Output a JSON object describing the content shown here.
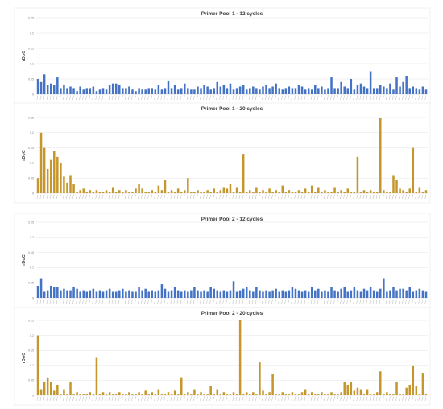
{
  "colors": {
    "blue": "#4472c4",
    "orange": "#c5962b",
    "grid": "#e4e4e4",
    "axis": "#c8c8c8"
  },
  "chart_data": [
    {
      "type": "bar",
      "title": "Primer Pool 1 - 12 cycles",
      "ylabel": "rDoC",
      "ylim": [
        0,
        0.25
      ],
      "yticks": [
        "0",
        "0.05",
        "0.1",
        "0.15",
        "0.2",
        "0.25"
      ],
      "grid": true,
      "color": "#4472c4",
      "values": [
        0.05,
        0.04,
        0.065,
        0.03,
        0.035,
        0.03,
        0.055,
        0.02,
        0.03,
        0.02,
        0.025,
        0.02,
        0.01,
        0.025,
        0.015,
        0.02,
        0.02,
        0.025,
        0.01,
        0.015,
        0.02,
        0.015,
        0.03,
        0.035,
        0.035,
        0.03,
        0.02,
        0.02,
        0.025,
        0.015,
        0.01,
        0.02,
        0.015,
        0.015,
        0.02,
        0.02,
        0.015,
        0.03,
        0.015,
        0.02,
        0.045,
        0.02,
        0.03,
        0.015,
        0.02,
        0.035,
        0.02,
        0.015,
        0.015,
        0.025,
        0.02,
        0.03,
        0.025,
        0.015,
        0.02,
        0.04,
        0.025,
        0.03,
        0.02,
        0.035,
        0.015,
        0.02,
        0.025,
        0.03,
        0.015,
        0.02,
        0.025,
        0.02,
        0.015,
        0.025,
        0.03,
        0.02,
        0.025,
        0.035,
        0.02,
        0.015,
        0.02,
        0.025,
        0.02,
        0.02,
        0.03,
        0.025,
        0.015,
        0.02,
        0.015,
        0.03,
        0.02,
        0.025,
        0.015,
        0.02,
        0.055,
        0.02,
        0.02,
        0.04,
        0.025,
        0.02,
        0.05,
        0.015,
        0.03,
        0.035,
        0.025,
        0.02,
        0.075,
        0.02,
        0.02,
        0.03,
        0.025,
        0.02,
        0.035,
        0.015,
        0.055,
        0.025,
        0.04,
        0.06,
        0.02,
        0.025,
        0.02,
        0.015,
        0.025,
        0.015
      ]
    },
    {
      "type": "bar",
      "title": "Primer Pool 1 - 20 cycles",
      "ylabel": "rDoC",
      "ylim": [
        0,
        0.25
      ],
      "yticks": [
        "0",
        "0.05",
        "0.1",
        "0.15",
        "0.2",
        "0.25"
      ],
      "grid": true,
      "color": "#c5962b",
      "values": [
        0.05,
        0.2,
        0.15,
        0.08,
        0.11,
        0.14,
        0.12,
        0.1,
        0.055,
        0.035,
        0.06,
        0.03,
        0.005,
        0.01,
        0.015,
        0.005,
        0.01,
        0.005,
        0.01,
        0.005,
        0.005,
        0.01,
        0.005,
        0.02,
        0.005,
        0.01,
        0.005,
        0.01,
        0.005,
        0.005,
        0.015,
        0.03,
        0.015,
        0.005,
        0.005,
        0.01,
        0.005,
        0.025,
        0.01,
        0.045,
        0.005,
        0.01,
        0.005,
        0.015,
        0.005,
        0.01,
        0.05,
        0.005,
        0.005,
        0.01,
        0.005,
        0.005,
        0.01,
        0.005,
        0.015,
        0.005,
        0.01,
        0.02,
        0.015,
        0.03,
        0.005,
        0.02,
        0.005,
        0.13,
        0.005,
        0.01,
        0.005,
        0.02,
        0.005,
        0.01,
        0.005,
        0.015,
        0.005,
        0.01,
        0.005,
        0.025,
        0.005,
        0.01,
        0.005,
        0.005,
        0.01,
        0.005,
        0.015,
        0.005,
        0.025,
        0.005,
        0.02,
        0.005,
        0.01,
        0.005,
        0.005,
        0.02,
        0.005,
        0.01,
        0.005,
        0.015,
        0.005,
        0.005,
        0.12,
        0.005,
        0.01,
        0.005,
        0.01,
        0.005,
        0.005,
        0.25,
        0.01,
        0.005,
        0.005,
        0.06,
        0.045,
        0.015,
        0.01,
        0.005,
        0.015,
        0.15,
        0.005,
        0.02,
        0.005,
        0.01
      ]
    },
    {
      "type": "bar",
      "title": "Primer Pool 2 - 12 cycles",
      "ylabel": "rDoC",
      "ylim": [
        0,
        0.25
      ],
      "yticks": [
        "0",
        "0.05",
        "0.1",
        "0.15",
        "0.2",
        "0.25"
      ],
      "grid": true,
      "color": "#4472c4",
      "values": [
        0.04,
        0.065,
        0.02,
        0.025,
        0.04,
        0.035,
        0.035,
        0.025,
        0.03,
        0.025,
        0.025,
        0.035,
        0.03,
        0.02,
        0.025,
        0.02,
        0.025,
        0.03,
        0.02,
        0.025,
        0.02,
        0.025,
        0.03,
        0.02,
        0.02,
        0.025,
        0.03,
        0.02,
        0.025,
        0.02,
        0.02,
        0.035,
        0.025,
        0.03,
        0.02,
        0.025,
        0.02,
        0.025,
        0.045,
        0.03,
        0.02,
        0.025,
        0.035,
        0.025,
        0.02,
        0.025,
        0.02,
        0.025,
        0.035,
        0.025,
        0.02,
        0.025,
        0.02,
        0.035,
        0.03,
        0.025,
        0.02,
        0.025,
        0.02,
        0.025,
        0.055,
        0.02,
        0.025,
        0.03,
        0.035,
        0.025,
        0.02,
        0.035,
        0.025,
        0.02,
        0.025,
        0.02,
        0.025,
        0.03,
        0.02,
        0.025,
        0.02,
        0.025,
        0.035,
        0.03,
        0.025,
        0.02,
        0.025,
        0.02,
        0.035,
        0.025,
        0.03,
        0.02,
        0.025,
        0.02,
        0.035,
        0.025,
        0.02,
        0.03,
        0.035,
        0.02,
        0.025,
        0.035,
        0.025,
        0.02,
        0.03,
        0.025,
        0.035,
        0.025,
        0.02,
        0.03,
        0.065,
        0.02,
        0.025,
        0.035,
        0.025,
        0.03,
        0.03,
        0.025,
        0.035,
        0.02,
        0.025,
        0.03,
        0.025,
        0.02
      ]
    },
    {
      "type": "bar",
      "title": "Primer Pool 2 - 20 cycles",
      "ylabel": "rDoC",
      "ylim": [
        0,
        0.25
      ],
      "yticks": [
        "0",
        "0.05",
        "0.1",
        "0.15",
        "0.2",
        "0.25"
      ],
      "grid": true,
      "color": "#c5962b",
      "values": [
        0.2,
        0.02,
        0.045,
        0.06,
        0.045,
        0.015,
        0.035,
        0.005,
        0.02,
        0.005,
        0.045,
        0.005,
        0.01,
        0.005,
        0.005,
        0.005,
        0.01,
        0.005,
        0.125,
        0.005,
        0.01,
        0.005,
        0.01,
        0.005,
        0.005,
        0.01,
        0.005,
        0.005,
        0.01,
        0.005,
        0.005,
        0.01,
        0.005,
        0.015,
        0.005,
        0.01,
        0.005,
        0.02,
        0.005,
        0.005,
        0.01,
        0.005,
        0.015,
        0.005,
        0.06,
        0.005,
        0.01,
        0.005,
        0.02,
        0.005,
        0.01,
        0.005,
        0.005,
        0.03,
        0.005,
        0.02,
        0.005,
        0.01,
        0.005,
        0.005,
        0.01,
        0.005,
        0.25,
        0.005,
        0.01,
        0.005,
        0.01,
        0.005,
        0.11,
        0.015,
        0.005,
        0.01,
        0.07,
        0.005,
        0.005,
        0.01,
        0.005,
        0.005,
        0.01,
        0.005,
        0.005,
        0.01,
        0.02,
        0.005,
        0.01,
        0.005,
        0.005,
        0.01,
        0.005,
        0.005,
        0.01,
        0.005,
        0.005,
        0.01,
        0.045,
        0.035,
        0.045,
        0.015,
        0.025,
        0.02,
        0.005,
        0.02,
        0.005,
        0.005,
        0.01,
        0.08,
        0.005,
        0.01,
        0.005,
        0.005,
        0.045,
        0.005,
        0.005,
        0.025,
        0.035,
        0.1,
        0.03,
        0.005,
        0.075,
        0.005
      ]
    }
  ]
}
